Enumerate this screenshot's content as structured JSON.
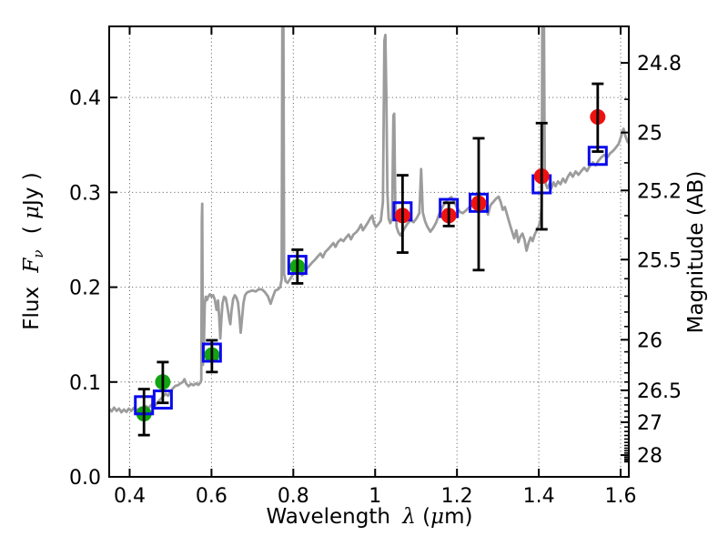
{
  "figure": {
    "background": "#ffffff"
  },
  "axis_labels": {
    "x": {
      "word": "Wavelength",
      "symbol": "λ",
      "unit_prefix": "(",
      "unit_mu": "μ",
      "unit_suffix": "m)"
    },
    "y": {
      "word": "Flux",
      "symbol": "F",
      "subscript": "ν",
      "unit_prefix": "(",
      "unit_mu": "μ",
      "unit_suffix": "Jy )"
    },
    "y2": {
      "text": "Magnitude (AB)"
    }
  },
  "chart_data": {
    "type": "line+scatter",
    "title": "",
    "xlabel": "Wavelength λ (μm)",
    "ylabel": "Flux Fν ( μJy )",
    "y2label": "Magnitude (AB)",
    "xlim": [
      0.35,
      1.62
    ],
    "ylim": [
      0,
      0.475
    ],
    "grid": true,
    "mag_zeropoint": 23.9,
    "xticks": {
      "values": [
        0.4,
        0.6,
        0.8,
        1.0,
        1.2,
        1.4,
        1.6
      ],
      "labels": [
        "0.4",
        "0.6",
        "0.8",
        "1",
        "1.2",
        "1.4",
        "1.6"
      ]
    },
    "yticks": {
      "values": [
        0.0,
        0.1,
        0.2,
        0.3,
        0.4
      ],
      "labels": [
        "0.0",
        "0.1",
        "0.2",
        "0.3",
        "0.4"
      ]
    },
    "y2ticks": {
      "mags": [
        24.8,
        25,
        25.2,
        25.5,
        26,
        26.5,
        27,
        28
      ],
      "labels": [
        "24.8",
        "25",
        "25.2",
        "25.5",
        "26",
        "26.5",
        "27",
        "28"
      ],
      "minor_mags": [
        24.9,
        25.1,
        25.3,
        25.4,
        25.6,
        25.7,
        25.8,
        25.9,
        26.1,
        26.2,
        26.3,
        26.4,
        26.6,
        26.7,
        26.8,
        26.9,
        27.1,
        27.2,
        27.3,
        27.4,
        27.5,
        27.6,
        27.7,
        27.8,
        27.9,
        28.1,
        28.2,
        28.3,
        28.4
      ]
    },
    "spectrum": {
      "name": "gray model spectrum",
      "color": "#9c9c9c",
      "linewidth": 2.8,
      "points": [
        [
          0.35,
          0.072
        ],
        [
          0.356,
          0.069
        ],
        [
          0.362,
          0.073
        ],
        [
          0.368,
          0.0695
        ],
        [
          0.374,
          0.072
        ],
        [
          0.38,
          0.068
        ],
        [
          0.386,
          0.071
        ],
        [
          0.392,
          0.0685
        ],
        [
          0.398,
          0.072
        ],
        [
          0.404,
          0.0695
        ],
        [
          0.41,
          0.0725
        ],
        [
          0.416,
          0.07
        ],
        [
          0.422,
          0.0715
        ],
        [
          0.428,
          0.073
        ],
        [
          0.434,
          0.0725
        ],
        [
          0.44,
          0.0745
        ],
        [
          0.446,
          0.0725
        ],
        [
          0.452,
          0.0755
        ],
        [
          0.458,
          0.0775
        ],
        [
          0.464,
          0.076
        ],
        [
          0.47,
          0.0795
        ],
        [
          0.476,
          0.082
        ],
        [
          0.482,
          0.085
        ],
        [
          0.488,
          0.0875
        ],
        [
          0.494,
          0.0855
        ],
        [
          0.5,
          0.09
        ],
        [
          0.506,
          0.0935
        ],
        [
          0.512,
          0.096
        ],
        [
          0.518,
          0.0965
        ],
        [
          0.524,
          0.0985
        ],
        [
          0.53,
          0.1
        ],
        [
          0.534,
          0.103
        ],
        [
          0.538,
          0.0985
        ],
        [
          0.544,
          0.0955
        ],
        [
          0.55,
          0.098
        ],
        [
          0.556,
          0.0965
        ],
        [
          0.562,
          0.0985
        ],
        [
          0.568,
          0.097
        ],
        [
          0.573,
          0.0995
        ],
        [
          0.575,
          0.102
        ],
        [
          0.5765,
          0.27
        ],
        [
          0.5773,
          0.288
        ],
        [
          0.5782,
          0.2
        ],
        [
          0.579,
          0.118
        ],
        [
          0.5815,
          0.14
        ],
        [
          0.5835,
          0.182
        ],
        [
          0.586,
          0.19
        ],
        [
          0.589,
          0.1865
        ],
        [
          0.592,
          0.19
        ],
        [
          0.596,
          0.1925
        ],
        [
          0.6,
          0.19
        ],
        [
          0.604,
          0.1915
        ],
        [
          0.608,
          0.187
        ],
        [
          0.6125,
          0.176
        ],
        [
          0.616,
          0.186
        ],
        [
          0.619,
          0.168
        ],
        [
          0.6215,
          0.146
        ],
        [
          0.624,
          0.165
        ],
        [
          0.627,
          0.183
        ],
        [
          0.631,
          0.19
        ],
        [
          0.635,
          0.1885
        ],
        [
          0.639,
          0.179
        ],
        [
          0.6435,
          0.166
        ],
        [
          0.646,
          0.161
        ],
        [
          0.649,
          0.175
        ],
        [
          0.653,
          0.1875
        ],
        [
          0.657,
          0.1915
        ],
        [
          0.661,
          0.189
        ],
        [
          0.665,
          0.1835
        ],
        [
          0.6685,
          0.168
        ],
        [
          0.6715,
          0.152
        ],
        [
          0.6745,
          0.166
        ],
        [
          0.678,
          0.183
        ],
        [
          0.682,
          0.1915
        ],
        [
          0.687,
          0.1945
        ],
        [
          0.693,
          0.1955
        ],
        [
          0.7,
          0.1965
        ],
        [
          0.708,
          0.1955
        ],
        [
          0.716,
          0.198
        ],
        [
          0.724,
          0.1975
        ],
        [
          0.731,
          0.1945
        ],
        [
          0.738,
          0.1905
        ],
        [
          0.7445,
          0.1825
        ],
        [
          0.75,
          0.1895
        ],
        [
          0.756,
          0.1965
        ],
        [
          0.762,
          0.1975
        ],
        [
          0.768,
          0.2
        ],
        [
          0.7715,
          0.208
        ],
        [
          0.7735,
          0.53
        ],
        [
          0.7755,
          0.53
        ],
        [
          0.7775,
          0.214
        ],
        [
          0.781,
          0.2065
        ],
        [
          0.786,
          0.2045
        ],
        [
          0.792,
          0.2085
        ],
        [
          0.798,
          0.2125
        ],
        [
          0.804,
          0.217
        ],
        [
          0.81,
          0.2215
        ],
        [
          0.8155,
          0.2195
        ],
        [
          0.821,
          0.2125
        ],
        [
          0.826,
          0.2145
        ],
        [
          0.832,
          0.219
        ],
        [
          0.839,
          0.2225
        ],
        [
          0.846,
          0.226
        ],
        [
          0.853,
          0.229
        ],
        [
          0.86,
          0.2325
        ],
        [
          0.8665,
          0.2355
        ],
        [
          0.872,
          0.2315
        ],
        [
          0.878,
          0.237
        ],
        [
          0.885,
          0.24
        ],
        [
          0.892,
          0.2435
        ],
        [
          0.898,
          0.2465
        ],
        [
          0.903,
          0.2425
        ],
        [
          0.909,
          0.2475
        ],
        [
          0.916,
          0.2505
        ],
        [
          0.9225,
          0.2485
        ],
        [
          0.929,
          0.2525
        ],
        [
          0.9355,
          0.2555
        ],
        [
          0.941,
          0.2505
        ],
        [
          0.947,
          0.2555
        ],
        [
          0.954,
          0.258
        ],
        [
          0.96,
          0.2615
        ],
        [
          0.9655,
          0.266
        ],
        [
          0.97,
          0.26
        ],
        [
          0.976,
          0.264
        ],
        [
          0.982,
          0.268
        ],
        [
          0.988,
          0.2725
        ],
        [
          0.993,
          0.2755
        ],
        [
          0.997,
          0.2675
        ],
        [
          1.002,
          0.2635
        ],
        [
          1.008,
          0.2665
        ],
        [
          1.014,
          0.27
        ],
        [
          1.019,
          0.29
        ],
        [
          1.0225,
          0.46
        ],
        [
          1.025,
          0.466
        ],
        [
          1.0275,
          0.4
        ],
        [
          1.03,
          0.3
        ],
        [
          1.033,
          0.272
        ],
        [
          1.037,
          0.2675
        ],
        [
          1.0415,
          0.272
        ],
        [
          1.0445,
          0.381
        ],
        [
          1.0465,
          0.383
        ],
        [
          1.049,
          0.29
        ],
        [
          1.0525,
          0.2635
        ],
        [
          1.057,
          0.2575
        ],
        [
          1.062,
          0.2545
        ],
        [
          1.067,
          0.2585
        ],
        [
          1.073,
          0.263
        ],
        [
          1.08,
          0.2675
        ],
        [
          1.087,
          0.2705
        ],
        [
          1.094,
          0.2685
        ],
        [
          1.101,
          0.2725
        ],
        [
          1.108,
          0.278
        ],
        [
          1.1125,
          0.3245
        ],
        [
          1.1165,
          0.279
        ],
        [
          1.122,
          0.2695
        ],
        [
          1.128,
          0.2635
        ],
        [
          1.135,
          0.2585
        ],
        [
          1.142,
          0.2625
        ],
        [
          1.149,
          0.268
        ],
        [
          1.156,
          0.2765
        ],
        [
          1.163,
          0.2835
        ],
        [
          1.17,
          0.2885
        ],
        [
          1.178,
          0.2925
        ],
        [
          1.186,
          0.295
        ],
        [
          1.193,
          0.2905
        ],
        [
          1.2,
          0.2835
        ],
        [
          1.207,
          0.2795
        ],
        [
          1.214,
          0.278
        ],
        [
          1.221,
          0.2805
        ],
        [
          1.228,
          0.2835
        ],
        [
          1.235,
          0.286
        ],
        [
          1.242,
          0.2845
        ],
        [
          1.249,
          0.2815
        ],
        [
          1.256,
          0.28
        ],
        [
          1.263,
          0.2815
        ],
        [
          1.27,
          0.2835
        ],
        [
          1.276,
          0.2765
        ],
        [
          1.282,
          0.2865
        ],
        [
          1.289,
          0.29
        ],
        [
          1.296,
          0.2935
        ],
        [
          1.302,
          0.2955
        ],
        [
          1.307,
          0.2895
        ],
        [
          1.312,
          0.2815
        ],
        [
          1.317,
          0.2845
        ],
        [
          1.323,
          0.2755
        ],
        [
          1.329,
          0.2665
        ],
        [
          1.335,
          0.258
        ],
        [
          1.34,
          0.2515
        ],
        [
          1.345,
          0.26
        ],
        [
          1.35,
          0.2475
        ],
        [
          1.355,
          0.2535
        ],
        [
          1.36,
          0.2565
        ],
        [
          1.365,
          0.25
        ],
        [
          1.37,
          0.2385
        ],
        [
          1.375,
          0.2465
        ],
        [
          1.38,
          0.2525
        ],
        [
          1.385,
          0.2485
        ],
        [
          1.39,
          0.2555
        ],
        [
          1.395,
          0.26
        ],
        [
          1.4,
          0.2645
        ],
        [
          1.404,
          0.2705
        ],
        [
          1.407,
          0.285
        ],
        [
          1.409,
          0.53
        ],
        [
          1.412,
          0.53
        ],
        [
          1.4145,
          0.325
        ],
        [
          1.417,
          0.3085
        ],
        [
          1.421,
          0.3045
        ],
        [
          1.426,
          0.309
        ],
        [
          1.431,
          0.3045
        ],
        [
          1.436,
          0.3105
        ],
        [
          1.441,
          0.3065
        ],
        [
          1.447,
          0.3115
        ],
        [
          1.453,
          0.3085
        ],
        [
          1.459,
          0.3145
        ],
        [
          1.465,
          0.3105
        ],
        [
          1.471,
          0.3165
        ],
        [
          1.477,
          0.3205
        ],
        [
          1.483,
          0.3165
        ],
        [
          1.49,
          0.322
        ],
        [
          1.497,
          0.3185
        ],
        [
          1.504,
          0.3225
        ],
        [
          1.511,
          0.326
        ],
        [
          1.518,
          0.3225
        ],
        [
          1.525,
          0.328
        ],
        [
          1.532,
          0.3315
        ],
        [
          1.539,
          0.3285
        ],
        [
          1.546,
          0.3335
        ],
        [
          1.553,
          0.337
        ],
        [
          1.56,
          0.3395
        ],
        [
          1.567,
          0.3365
        ],
        [
          1.574,
          0.341
        ],
        [
          1.581,
          0.3435
        ],
        [
          1.588,
          0.347
        ],
        [
          1.595,
          0.351
        ],
        [
          1.602,
          0.36
        ],
        [
          1.607,
          0.367
        ],
        [
          1.612,
          0.359
        ],
        [
          1.617,
          0.353
        ],
        [
          1.62,
          0.354
        ]
      ]
    },
    "series": [
      {
        "name": "green filled circles (photometry with error bars)",
        "marker": "circle",
        "color": "#12a412",
        "points": [
          {
            "x": 0.435,
            "y": 0.0665,
            "err_up": 0.026,
            "err_down": 0.0225
          },
          {
            "x": 0.481,
            "y": 0.1,
            "err_up": 0.021,
            "err_down": 0.022
          },
          {
            "x": 0.601,
            "y": 0.1285,
            "err_up": 0.0155,
            "err_down": 0.018
          },
          {
            "x": 0.81,
            "y": 0.2215,
            "err_up": 0.018,
            "err_down": 0.0175
          }
        ]
      },
      {
        "name": "blue open squares (model photometry, no error bars)",
        "marker": "square-open",
        "color": "#0a0aee",
        "points": [
          {
            "x": 0.435,
            "y": 0.0755
          },
          {
            "x": 0.481,
            "y": 0.0815
          },
          {
            "x": 0.601,
            "y": 0.131
          },
          {
            "x": 0.81,
            "y": 0.2235
          },
          {
            "x": 1.067,
            "y": 0.28
          },
          {
            "x": 1.18,
            "y": 0.2835
          },
          {
            "x": 1.253,
            "y": 0.289
          },
          {
            "x": 1.407,
            "y": 0.3085
          },
          {
            "x": 1.544,
            "y": 0.3385
          }
        ]
      },
      {
        "name": "red filled circles (photometry with error bars)",
        "marker": "circle",
        "color": "#ee1111",
        "points": [
          {
            "x": 1.067,
            "y": 0.2755,
            "err_up": 0.0425,
            "err_down": 0.039
          },
          {
            "x": 1.18,
            "y": 0.2755,
            "err_up": 0.0135,
            "err_down": 0.011
          },
          {
            "x": 1.253,
            "y": 0.2885,
            "err_up": 0.0685,
            "err_down": 0.0705
          },
          {
            "x": 1.407,
            "y": 0.317,
            "err_up": 0.056,
            "err_down": 0.056
          },
          {
            "x": 1.544,
            "y": 0.3795,
            "err_up": 0.035,
            "err_down": 0.0365
          }
        ]
      }
    ],
    "errorbar_color": "#000000",
    "grid_color": "#555555",
    "frame_color": "#000000"
  }
}
